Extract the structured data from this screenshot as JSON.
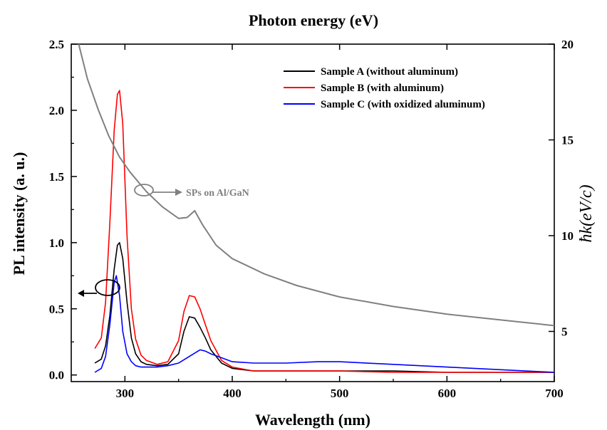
{
  "chart_data": {
    "type": "line",
    "top_axis_label": "Photon energy (eV)",
    "xlabel": "Wavelength (nm)",
    "ylabel": "PL intensity (a. u.)",
    "y2label": "ħk(eV/c)",
    "xlim": [
      250,
      700
    ],
    "ylim": [
      -0.05,
      2.5
    ],
    "y2lim": [
      2.38,
      20
    ],
    "x_ticks": [
      300,
      400,
      500,
      600,
      700
    ],
    "y_ticks": [
      0.0,
      0.5,
      1.0,
      1.5,
      2.0,
      2.5
    ],
    "y_tick_labels": [
      "0.0",
      "0.5",
      "1.0",
      "1.5",
      "2.0",
      "2.5"
    ],
    "y2_ticks": [
      5,
      10,
      15,
      20
    ],
    "grid": false,
    "legend_position": "top-right",
    "series": [
      {
        "name": "Sample A (without aluminum)",
        "color": "#000000",
        "axis": "left",
        "x": [
          272,
          278,
          282,
          286,
          290,
          293,
          295,
          298,
          302,
          306,
          310,
          315,
          320,
          330,
          340,
          350,
          355,
          360,
          365,
          370,
          375,
          380,
          390,
          400,
          420,
          450,
          500,
          550,
          600,
          650,
          700
        ],
        "y": [
          0.09,
          0.12,
          0.22,
          0.45,
          0.8,
          0.98,
          1.0,
          0.88,
          0.55,
          0.28,
          0.16,
          0.1,
          0.08,
          0.07,
          0.08,
          0.16,
          0.33,
          0.44,
          0.43,
          0.36,
          0.28,
          0.19,
          0.09,
          0.05,
          0.03,
          0.03,
          0.03,
          0.03,
          0.02,
          0.02,
          0.02
        ]
      },
      {
        "name": "Sample B (with aluminum)",
        "color": "#ff0000",
        "axis": "left",
        "x": [
          272,
          278,
          282,
          286,
          290,
          293,
          295,
          298,
          302,
          306,
          310,
          315,
          320,
          330,
          340,
          350,
          355,
          360,
          365,
          370,
          375,
          380,
          390,
          400,
          420,
          450,
          500,
          550,
          600,
          650,
          700
        ],
        "y": [
          0.2,
          0.28,
          0.55,
          1.15,
          1.85,
          2.12,
          2.15,
          1.9,
          1.05,
          0.5,
          0.27,
          0.15,
          0.11,
          0.08,
          0.1,
          0.26,
          0.48,
          0.6,
          0.59,
          0.5,
          0.38,
          0.26,
          0.11,
          0.06,
          0.03,
          0.03,
          0.03,
          0.02,
          0.02,
          0.02,
          0.02
        ]
      },
      {
        "name": "Sample C (with oxidized aluminum)",
        "color": "#0000ff",
        "axis": "left",
        "x": [
          272,
          278,
          282,
          286,
          290,
          292,
          295,
          298,
          302,
          306,
          310,
          315,
          320,
          330,
          340,
          350,
          360,
          370,
          375,
          380,
          390,
          400,
          420,
          450,
          480,
          500,
          550,
          600,
          650,
          700
        ],
        "y": [
          0.02,
          0.05,
          0.14,
          0.38,
          0.7,
          0.75,
          0.6,
          0.33,
          0.16,
          0.1,
          0.07,
          0.06,
          0.06,
          0.06,
          0.07,
          0.09,
          0.14,
          0.19,
          0.18,
          0.16,
          0.13,
          0.1,
          0.09,
          0.09,
          0.1,
          0.1,
          0.08,
          0.06,
          0.04,
          0.02
        ]
      },
      {
        "name": "SPs on Al/GaN",
        "color": "#808080",
        "axis": "right",
        "x": [
          257,
          265,
          275,
          285,
          295,
          305,
          320,
          335,
          350,
          358,
          365,
          372,
          385,
          400,
          430,
          460,
          500,
          550,
          600,
          650,
          700
        ],
        "y": [
          20.0,
          18.2,
          16.6,
          15.2,
          14.1,
          13.3,
          12.3,
          11.5,
          10.9,
          10.95,
          11.3,
          10.6,
          9.5,
          8.8,
          8.0,
          7.4,
          6.8,
          6.3,
          5.9,
          5.6,
          5.3
        ]
      }
    ]
  },
  "annotations": {
    "sps_label": "SPs on Al/GaN"
  }
}
